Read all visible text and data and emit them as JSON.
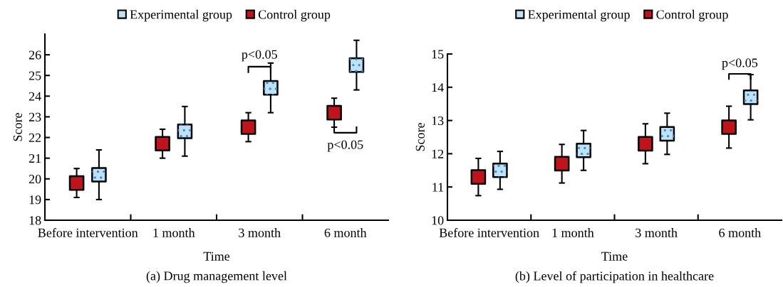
{
  "chart_data": [
    {
      "type": "scatter",
      "title": "(a) Drug management level",
      "xlabel": "Time",
      "ylabel": "Score",
      "categories": [
        "Before intervention",
        "1 month",
        "3 month",
        "6 month"
      ],
      "series": [
        {
          "name": "Experimental group",
          "color": "#bfe0f5",
          "values": [
            20.2,
            22.3,
            24.4,
            25.5
          ],
          "errors": [
            1.2,
            1.2,
            1.2,
            1.2
          ]
        },
        {
          "name": "Control group",
          "color": "#c0141c",
          "values": [
            19.8,
            21.7,
            22.5,
            23.2
          ],
          "errors": [
            0.7,
            0.7,
            0.7,
            0.7
          ]
        }
      ],
      "ylim": [
        18,
        27
      ],
      "yticks": [
        18,
        19,
        20,
        21,
        22,
        23,
        24,
        25,
        26
      ],
      "annotations": [
        "p<0.05",
        "p<0.05"
      ],
      "legend": "top",
      "marker": "square",
      "grid": false
    },
    {
      "type": "scatter",
      "title": "(b) Level of participation in healthcare",
      "xlabel": "Time",
      "ylabel": "Score",
      "categories": [
        "Before intervention",
        "1 month",
        "3 month",
        "6 month"
      ],
      "series": [
        {
          "name": "Experimental group",
          "color": "#bfe0f5",
          "values": [
            11.5,
            12.1,
            12.6,
            13.7
          ],
          "errors": [
            0.57,
            0.6,
            0.62,
            0.68
          ]
        },
        {
          "name": "Control group",
          "color": "#c0141c",
          "values": [
            11.3,
            11.7,
            12.3,
            12.8
          ],
          "errors": [
            0.56,
            0.58,
            0.6,
            0.63
          ]
        }
      ],
      "ylim": [
        10,
        15
      ],
      "yticks": [
        10,
        11,
        12,
        13,
        14,
        15
      ],
      "annotations": [
        "p<0.05"
      ],
      "legend": "top",
      "marker": "square",
      "grid": false
    }
  ]
}
